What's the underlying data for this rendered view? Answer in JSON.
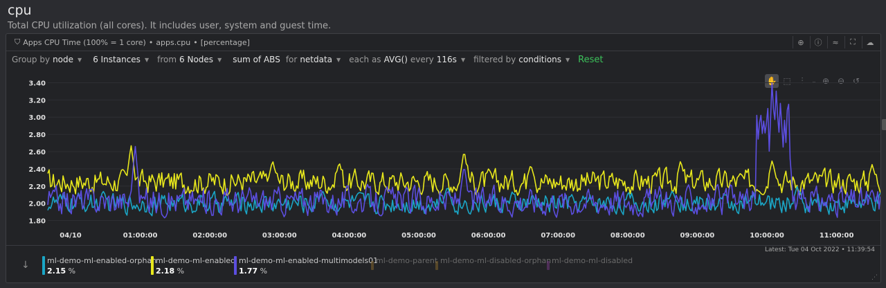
{
  "header": {
    "title": "cpu",
    "subtitle": "Total CPU utilization (all cores). It includes user, system and guest time."
  },
  "card": {
    "context_title": "Apps CPU Time (100% = 1 core)",
    "context_id": "apps.cpu",
    "units": "[percentage]",
    "icons": [
      "zoom-icon",
      "info-icon",
      "chart-type-icon",
      "fullscreen-icon",
      "share-icon"
    ]
  },
  "toolbar": {
    "group_by_label": "Group by",
    "group_by_value": "node",
    "instances": "6 Instances",
    "from_label": "from",
    "from_value": "6 Nodes",
    "aggregation": "sum of ABS",
    "for_label": "for",
    "for_value": "netdata",
    "each_label": "each as",
    "each_value": "AVG()",
    "every_label": "every",
    "every_value": "116s",
    "filtered_label": "filtered by",
    "filtered_value": "conditions",
    "reset": "Reset"
  },
  "chart_controls": [
    "pan-icon",
    "select-icon",
    "highlight-icon",
    "zoom-in-icon",
    "zoom-out-icon",
    "reset-zoom-icon"
  ],
  "chart_data": {
    "type": "line",
    "ylim": [
      1.7,
      3.5
    ],
    "y_ticks": [
      "3.40",
      "3.20",
      "3.00",
      "2.80",
      "2.60",
      "2.40",
      "2.20",
      "2.00",
      "1.80"
    ],
    "x_ticks": [
      "04/10",
      "01:00:00",
      "02:00:00",
      "03:00:00",
      "04:00:00",
      "05:00:00",
      "06:00:00",
      "07:00:00",
      "08:00:00",
      "09:00:00",
      "10:00:00",
      "11:00:00"
    ],
    "series": [
      {
        "name": "ml-demo-ml-enabled",
        "color": "#e8e81c",
        "base": 2.25,
        "amp": 0.12,
        "spikes": [
          [
            0.1,
            2.68
          ],
          [
            0.27,
            2.5
          ],
          [
            0.35,
            2.48
          ],
          [
            0.5,
            2.62
          ],
          [
            0.58,
            2.45
          ],
          [
            0.76,
            2.5
          ],
          [
            0.87,
            2.5
          ],
          [
            0.99,
            2.45
          ]
        ]
      },
      {
        "name": "ml-demo-ml-enabled-orphan",
        "color": "#1aa6c6",
        "base": 2.0,
        "amp": 0.1,
        "spikes": [
          [
            0.33,
            2.15
          ],
          [
            0.48,
            2.2
          ],
          [
            0.75,
            2.15
          ],
          [
            0.9,
            2.2
          ]
        ]
      },
      {
        "name": "ml-demo-ml-enabled-multimodels01",
        "color": "#5c4ee0",
        "base": 2.03,
        "amp": 0.14,
        "spikes": [
          [
            0.105,
            2.68
          ],
          [
            0.5,
            2.45
          ],
          [
            0.86,
            2.95
          ],
          [
            0.87,
            3.45
          ],
          [
            0.875,
            3.35
          ],
          [
            0.88,
            3.2
          ]
        ]
      }
    ]
  },
  "legend": {
    "latest": "Latest:  Tue 04 Oct 2022 • 11:39:54",
    "items": [
      {
        "name": "ml-demo-ml-enabled-orphan",
        "value": "2.15",
        "unit": "%",
        "color": "#1aa6c6"
      },
      {
        "name": "ml-demo-ml-enabled",
        "value": "2.18",
        "unit": "%",
        "color": "#e8e81c"
      },
      {
        "name": "ml-demo-ml-enabled-multimodels01",
        "value": "1.77",
        "unit": "%",
        "color": "#5c4ee0"
      },
      {
        "name": "ml-demo-parent",
        "color": "#8a6a2a"
      },
      {
        "name": "ml-demo-ml-disabled-orphan",
        "color": "#8a6a2a"
      },
      {
        "name": "ml-demo-ml-disabled",
        "color": "#7a3a8a"
      }
    ]
  }
}
